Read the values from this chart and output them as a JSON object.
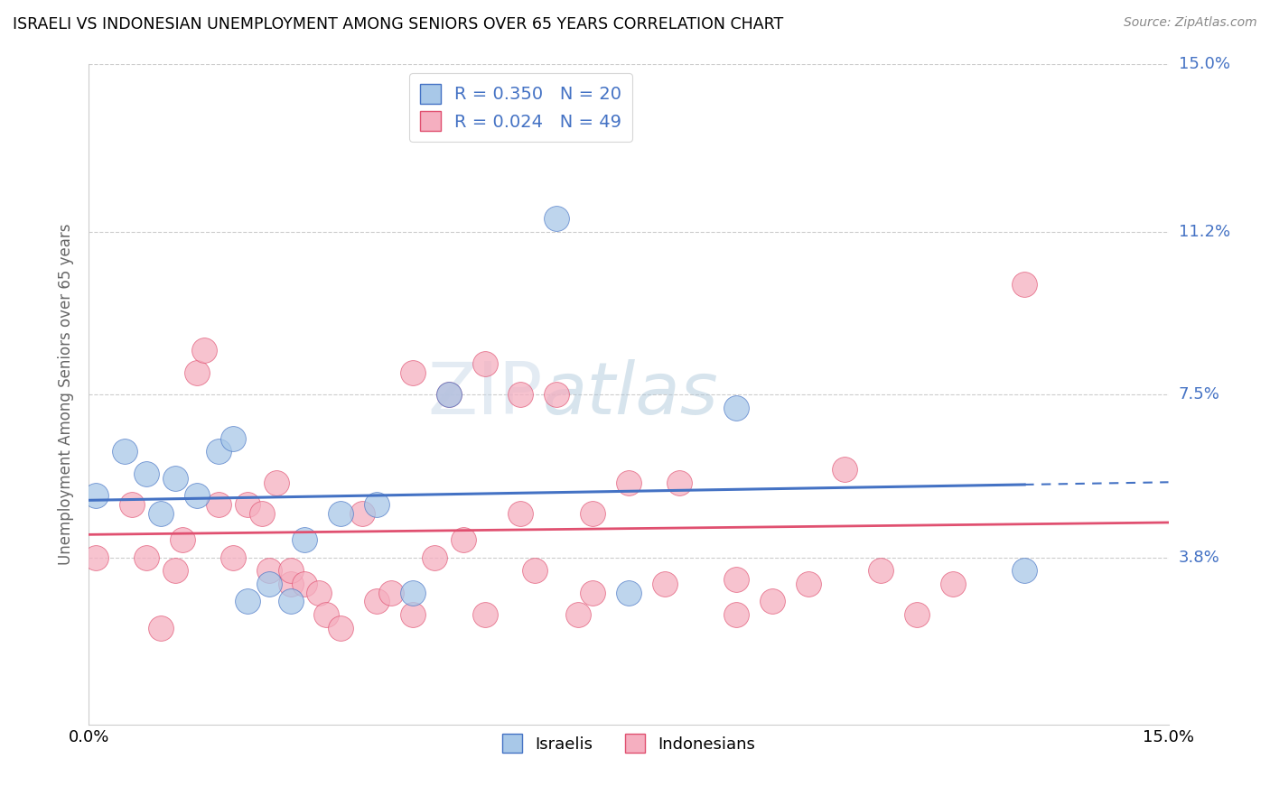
{
  "title": "ISRAELI VS INDONESIAN UNEMPLOYMENT AMONG SENIORS OVER 65 YEARS CORRELATION CHART",
  "source": "Source: ZipAtlas.com",
  "ylabel": "Unemployment Among Seniors over 65 years",
  "xlim": [
    0,
    0.15
  ],
  "ylim": [
    0,
    0.15
  ],
  "yticks": [
    0.038,
    0.075,
    0.112,
    0.15
  ],
  "ytick_labels": [
    "3.8%",
    "7.5%",
    "11.2%",
    "15.0%"
  ],
  "xtick_labels": [
    "0.0%",
    "15.0%"
  ],
  "israeli_color": "#a8c8e8",
  "indonesian_color": "#f5afc0",
  "israeli_line_color": "#4472c4",
  "indonesian_line_color": "#e05070",
  "israeli_R": 0.35,
  "israeli_N": 20,
  "indonesian_R": 0.024,
  "indonesian_N": 49,
  "legend_text_color": "#4472c4",
  "watermark": "ZIPAtlas",
  "israelis_x": [
    0.001,
    0.005,
    0.008,
    0.01,
    0.012,
    0.015,
    0.018,
    0.02,
    0.022,
    0.025,
    0.028,
    0.03,
    0.035,
    0.04,
    0.045,
    0.05,
    0.065,
    0.075,
    0.09,
    0.13
  ],
  "israelis_y": [
    0.052,
    0.062,
    0.057,
    0.048,
    0.056,
    0.052,
    0.062,
    0.065,
    0.028,
    0.032,
    0.028,
    0.042,
    0.048,
    0.05,
    0.03,
    0.075,
    0.115,
    0.03,
    0.072,
    0.035
  ],
  "indonesians_x": [
    0.001,
    0.006,
    0.008,
    0.01,
    0.012,
    0.013,
    0.015,
    0.016,
    0.018,
    0.02,
    0.022,
    0.024,
    0.025,
    0.026,
    0.028,
    0.028,
    0.03,
    0.032,
    0.033,
    0.035,
    0.038,
    0.04,
    0.042,
    0.045,
    0.048,
    0.05,
    0.052,
    0.055,
    0.06,
    0.062,
    0.065,
    0.068,
    0.07,
    0.075,
    0.08,
    0.082,
    0.09,
    0.09,
    0.095,
    0.1,
    0.105,
    0.11,
    0.115,
    0.06,
    0.045,
    0.055,
    0.07,
    0.12,
    0.13
  ],
  "indonesians_y": [
    0.038,
    0.05,
    0.038,
    0.022,
    0.035,
    0.042,
    0.08,
    0.085,
    0.05,
    0.038,
    0.05,
    0.048,
    0.035,
    0.055,
    0.032,
    0.035,
    0.032,
    0.03,
    0.025,
    0.022,
    0.048,
    0.028,
    0.03,
    0.025,
    0.038,
    0.075,
    0.042,
    0.082,
    0.048,
    0.035,
    0.075,
    0.025,
    0.048,
    0.055,
    0.032,
    0.055,
    0.033,
    0.025,
    0.028,
    0.032,
    0.058,
    0.035,
    0.025,
    0.075,
    0.08,
    0.025,
    0.03,
    0.032,
    0.1
  ]
}
